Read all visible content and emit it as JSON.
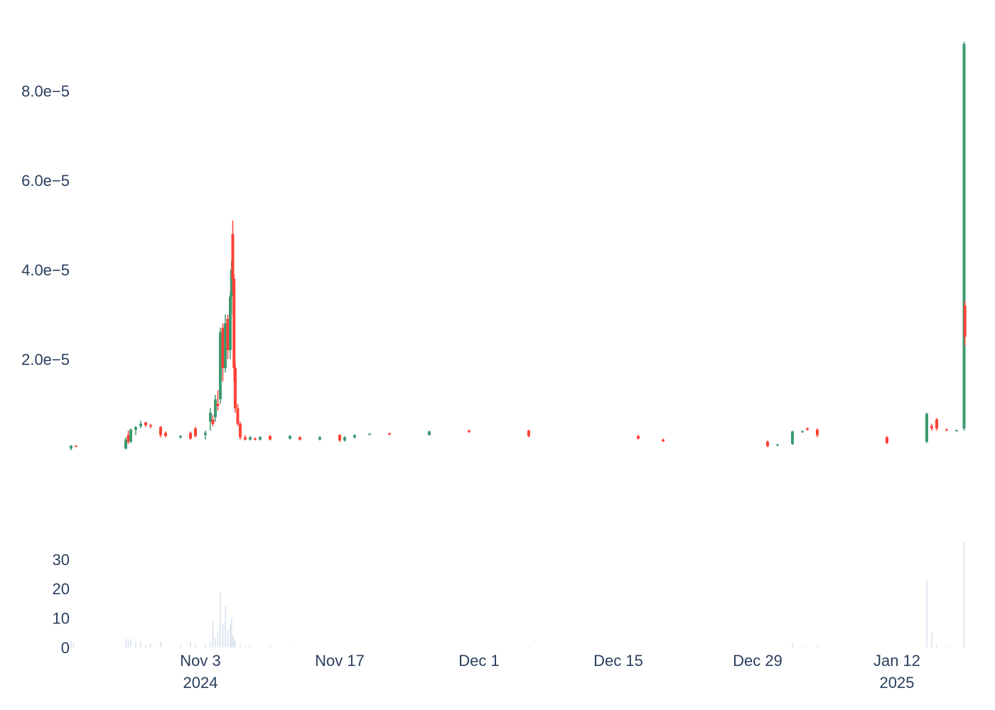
{
  "chart_data": [
    {
      "type": "candlestick",
      "y_ticks": [
        {
          "value": 2e-05,
          "label": "2.0e−5"
        },
        {
          "value": 4e-05,
          "label": "4.0e−5"
        },
        {
          "value": 6e-05,
          "label": "6.0e−5"
        },
        {
          "value": 8e-05,
          "label": "8.0e−5"
        }
      ],
      "ylim": [
        -4.5e-06,
        9.4e-05
      ],
      "xlim": [
        "2024-10-21",
        "2025-01-19"
      ],
      "x_ticks": [
        {
          "date": "2024-11-03",
          "label": "Nov 3",
          "sublabel": "2024"
        },
        {
          "date": "2024-11-17",
          "label": "Nov 17",
          "sublabel": ""
        },
        {
          "date": "2024-12-01",
          "label": "Dec 1",
          "sublabel": ""
        },
        {
          "date": "2024-12-15",
          "label": "Dec 15",
          "sublabel": ""
        },
        {
          "date": "2024-12-29",
          "label": "Dec 29",
          "sublabel": ""
        },
        {
          "date": "2025-01-12",
          "label": "Jan 12",
          "sublabel": "2025"
        }
      ],
      "colors": {
        "increasing": "#3d9970",
        "decreasing": "#ff4136"
      },
      "candles": [
        {
          "date": "2024-10-21",
          "open": 0.0,
          "high": 8e-07,
          "low": -4e-07,
          "close": 6e-07
        },
        {
          "date": "2024-10-21T12:00",
          "open": 6e-07,
          "high": 7e-07,
          "low": 4e-07,
          "close": 5e-07
        },
        {
          "date": "2024-10-26T12:00",
          "open": 0.0,
          "high": 2.5e-06,
          "low": -2e-07,
          "close": 2e-06
        },
        {
          "date": "2024-10-26T18:00",
          "open": 3e-06,
          "high": 4e-06,
          "low": 1e-06,
          "close": 1.5e-06
        },
        {
          "date": "2024-10-27",
          "open": 1.5e-06,
          "high": 4.5e-06,
          "low": 1.2e-06,
          "close": 4.2e-06
        },
        {
          "date": "2024-10-27T12:00",
          "open": 4.2e-06,
          "high": 5e-06,
          "low": 3e-06,
          "close": 4.8e-06
        },
        {
          "date": "2024-10-28",
          "open": 5e-06,
          "high": 6.2e-06,
          "low": 4.5e-06,
          "close": 5.5e-06
        },
        {
          "date": "2024-10-28T12:00",
          "open": 5.8e-06,
          "high": 6e-06,
          "low": 4.8e-06,
          "close": 5.2e-06
        },
        {
          "date": "2024-10-29",
          "open": 5.2e-06,
          "high": 5.5e-06,
          "low": 4.5e-06,
          "close": 5e-06
        },
        {
          "date": "2024-10-30",
          "open": 4.8e-06,
          "high": 5e-06,
          "low": 2.5e-06,
          "close": 3e-06
        },
        {
          "date": "2024-10-30T12:00",
          "open": 3.5e-06,
          "high": 3.8e-06,
          "low": 2.5e-06,
          "close": 2.8e-06
        },
        {
          "date": "2024-11-01",
          "open": 2.5e-06,
          "high": 3e-06,
          "low": 2.2e-06,
          "close": 2.8e-06
        },
        {
          "date": "2024-11-02",
          "open": 3.5e-06,
          "high": 3.8e-06,
          "low": 2e-06,
          "close": 2.2e-06
        },
        {
          "date": "2024-11-02T12:00",
          "open": 4.5e-06,
          "high": 4.8e-06,
          "low": 2.5e-06,
          "close": 2.8e-06
        },
        {
          "date": "2024-11-03T12:00",
          "open": 3e-06,
          "high": 4e-06,
          "low": 2e-06,
          "close": 3.5e-06
        },
        {
          "date": "2024-11-04",
          "open": 6e-06,
          "high": 9e-06,
          "low": 4e-06,
          "close": 8e-06
        },
        {
          "date": "2024-11-04T06:00",
          "open": 6.5e-06,
          "high": 7.5e-06,
          "low": 5e-06,
          "close": 5.5e-06
        },
        {
          "date": "2024-11-04T12:00",
          "open": 7e-06,
          "high": 1.2e-05,
          "low": 6e-06,
          "close": 1.1e-05
        },
        {
          "date": "2024-11-04T18:00",
          "open": 1e-05,
          "high": 1.3e-05,
          "low": 8.5e-06,
          "close": 9.5e-06
        },
        {
          "date": "2024-11-05",
          "open": 1.1e-05,
          "high": 2.7e-05,
          "low": 1e-05,
          "close": 2.6e-05
        },
        {
          "date": "2024-11-05T06:00",
          "open": 2.7e-05,
          "high": 2.8e-05,
          "low": 1.5e-05,
          "close": 1.8e-05
        },
        {
          "date": "2024-11-05T12:00",
          "open": 1.8e-05,
          "high": 3e-05,
          "low": 1.7e-05,
          "close": 2.8e-05
        },
        {
          "date": "2024-11-05T18:00",
          "open": 2.9e-05,
          "high": 3e-05,
          "low": 2e-05,
          "close": 2.2e-05
        },
        {
          "date": "2024-11-06",
          "open": 2.2e-05,
          "high": 3.5e-05,
          "low": 2e-05,
          "close": 3.4e-05
        },
        {
          "date": "2024-11-06T03:00",
          "open": 3.4e-05,
          "high": 4.2e-05,
          "low": 3e-05,
          "close": 4e-05
        },
        {
          "date": "2024-11-06T06:00",
          "open": 4.8e-05,
          "high": 5.1e-05,
          "low": 3.5e-05,
          "close": 3.8e-05
        },
        {
          "date": "2024-11-06T09:00",
          "open": 3.8e-05,
          "high": 3.9e-05,
          "low": 1.5e-05,
          "close": 1.8e-05
        },
        {
          "date": "2024-11-06T12:00",
          "open": 1.8e-05,
          "high": 1.9e-05,
          "low": 8e-06,
          "close": 9e-06
        },
        {
          "date": "2024-11-06T18:00",
          "open": 9e-06,
          "high": 1e-05,
          "low": 5e-06,
          "close": 5.5e-06
        },
        {
          "date": "2024-11-07",
          "open": 5.5e-06,
          "high": 6e-06,
          "low": 2e-06,
          "close": 2.5e-06
        },
        {
          "date": "2024-11-07T12:00",
          "open": 2.5e-06,
          "high": 3e-06,
          "low": 1.8e-06,
          "close": 2e-06
        },
        {
          "date": "2024-11-08",
          "open": 2e-06,
          "high": 2.8e-06,
          "low": 1.8e-06,
          "close": 2.5e-06
        },
        {
          "date": "2024-11-08T12:00",
          "open": 2.2e-06,
          "high": 2.5e-06,
          "low": 1.8e-06,
          "close": 2e-06
        },
        {
          "date": "2024-11-09",
          "open": 2e-06,
          "high": 2.8e-06,
          "low": 1.8e-06,
          "close": 2.5e-06
        },
        {
          "date": "2024-11-10",
          "open": 2.8e-06,
          "high": 3e-06,
          "low": 1.8e-06,
          "close": 2e-06
        },
        {
          "date": "2024-11-12",
          "open": 2.2e-06,
          "high": 3e-06,
          "low": 2e-06,
          "close": 2.8e-06
        },
        {
          "date": "2024-11-13",
          "open": 2.5e-06,
          "high": 2.7e-06,
          "low": 1.8e-06,
          "close": 2e-06
        },
        {
          "date": "2024-11-15",
          "open": 2e-06,
          "high": 2.8e-06,
          "low": 1.8e-06,
          "close": 2.5e-06
        },
        {
          "date": "2024-11-17",
          "open": 3e-06,
          "high": 3.2e-06,
          "low": 1.5e-06,
          "close": 1.8e-06
        },
        {
          "date": "2024-11-17T12:00",
          "open": 1.8e-06,
          "high": 2.8e-06,
          "low": 1.5e-06,
          "close": 2.5e-06
        },
        {
          "date": "2024-11-18T12:00",
          "open": 2.5e-06,
          "high": 3.2e-06,
          "low": 2.2e-06,
          "close": 3e-06
        },
        {
          "date": "2024-11-20",
          "open": 3.2e-06,
          "high": 3.4e-06,
          "low": 3e-06,
          "close": 3.3e-06
        },
        {
          "date": "2024-11-22",
          "open": 3.4e-06,
          "high": 3.5e-06,
          "low": 3e-06,
          "close": 3.1e-06
        },
        {
          "date": "2024-11-26",
          "open": 3e-06,
          "high": 4e-06,
          "low": 3e-06,
          "close": 3.8e-06
        },
        {
          "date": "2024-11-30",
          "open": 4e-06,
          "high": 4.2e-06,
          "low": 3.5e-06,
          "close": 3.7e-06
        },
        {
          "date": "2024-12-06",
          "open": 4e-06,
          "high": 4.2e-06,
          "low": 2.5e-06,
          "close": 2.8e-06
        },
        {
          "date": "2024-12-17",
          "open": 2.8e-06,
          "high": 3e-06,
          "low": 2e-06,
          "close": 2.2e-06
        },
        {
          "date": "2024-12-19T12:00",
          "open": 2e-06,
          "high": 2.2e-06,
          "low": 1.5e-06,
          "close": 1.6e-06
        },
        {
          "date": "2024-12-30",
          "open": 1.5e-06,
          "high": 1.8e-06,
          "low": 3e-07,
          "close": 5e-07
        },
        {
          "date": "2024-12-31",
          "open": 8e-07,
          "high": 1e-06,
          "low": 5e-07,
          "close": 9e-07
        },
        {
          "date": "2025-01-01T12:00",
          "open": 1e-06,
          "high": 4e-06,
          "low": 8e-07,
          "close": 3.8e-06
        },
        {
          "date": "2025-01-02T12:00",
          "open": 3.8e-06,
          "high": 4e-06,
          "low": 3.5e-06,
          "close": 3.9e-06
        },
        {
          "date": "2025-01-03",
          "open": 4.5e-06,
          "high": 4.7e-06,
          "low": 4e-06,
          "close": 4.2e-06
        },
        {
          "date": "2025-01-04",
          "open": 4.2e-06,
          "high": 4.5e-06,
          "low": 2.5e-06,
          "close": 3e-06
        },
        {
          "date": "2025-01-11",
          "open": 2.5e-06,
          "high": 2.8e-06,
          "low": 1e-06,
          "close": 1.2e-06
        },
        {
          "date": "2025-01-15",
          "open": 1.5e-06,
          "high": 8e-06,
          "low": 1.2e-06,
          "close": 7.8e-06
        },
        {
          "date": "2025-01-15T12:00",
          "open": 5e-06,
          "high": 5.5e-06,
          "low": 4e-06,
          "close": 4.5e-06
        },
        {
          "date": "2025-01-16",
          "open": 6.5e-06,
          "high": 6.8e-06,
          "low": 4e-06,
          "close": 4.5e-06
        },
        {
          "date": "2025-01-17",
          "open": 4.2e-06,
          "high": 4.5e-06,
          "low": 4e-06,
          "close": 4.1e-06
        },
        {
          "date": "2025-01-18",
          "open": 4e-06,
          "high": 4.2e-06,
          "low": 3.8e-06,
          "close": 4.1e-06
        },
        {
          "date": "2025-01-18T18:00",
          "open": 4.5e-06,
          "high": 9.1e-05,
          "low": 4e-06,
          "close": 9.05e-05
        },
        {
          "date": "2025-01-18T20:00",
          "open": 3.2e-05,
          "high": 3.3e-05,
          "low": 2.3e-05,
          "close": 2.5e-05
        }
      ]
    },
    {
      "type": "bar",
      "y_ticks": [
        {
          "value": 0,
          "label": "0"
        },
        {
          "value": 10,
          "label": "10"
        },
        {
          "value": 20,
          "label": "20"
        },
        {
          "value": 30,
          "label": "30"
        }
      ],
      "ylim": [
        0,
        36
      ],
      "color": "#dfe7f2",
      "bars": [
        {
          "date": "2024-10-21",
          "value": 2
        },
        {
          "date": "2024-10-21T06:00",
          "value": 1.5
        },
        {
          "date": "2024-10-26T12:00",
          "value": 3
        },
        {
          "date": "2024-10-26T18:00",
          "value": 2.5
        },
        {
          "date": "2024-10-27",
          "value": 3
        },
        {
          "date": "2024-10-27T12:00",
          "value": 1.5
        },
        {
          "date": "2024-10-28",
          "value": 2
        },
        {
          "date": "2024-10-28T12:00",
          "value": 1
        },
        {
          "date": "2024-10-29",
          "value": 1.5
        },
        {
          "date": "2024-10-30",
          "value": 2
        },
        {
          "date": "2024-11-01",
          "value": 1
        },
        {
          "date": "2024-11-02",
          "value": 2
        },
        {
          "date": "2024-11-02T12:00",
          "value": 1.5
        },
        {
          "date": "2024-11-03T12:00",
          "value": 1
        },
        {
          "date": "2024-11-04",
          "value": 2
        },
        {
          "date": "2024-11-04T06:00",
          "value": 9
        },
        {
          "date": "2024-11-04T12:00",
          "value": 3
        },
        {
          "date": "2024-11-04T18:00",
          "value": 5
        },
        {
          "date": "2024-11-05",
          "value": 19
        },
        {
          "date": "2024-11-05T06:00",
          "value": 8
        },
        {
          "date": "2024-11-05T12:00",
          "value": 14
        },
        {
          "date": "2024-11-05T18:00",
          "value": 6
        },
        {
          "date": "2024-11-06",
          "value": 8
        },
        {
          "date": "2024-11-06T03:00",
          "value": 10
        },
        {
          "date": "2024-11-06T06:00",
          "value": 4
        },
        {
          "date": "2024-11-06T09:00",
          "value": 3
        },
        {
          "date": "2024-11-06T12:00",
          "value": 2
        },
        {
          "date": "2024-11-07",
          "value": 1
        },
        {
          "date": "2024-11-07T12:00",
          "value": 0.5
        },
        {
          "date": "2024-11-08",
          "value": 0.5
        },
        {
          "date": "2024-11-10",
          "value": 0.5
        },
        {
          "date": "2024-11-12",
          "value": 0.3
        },
        {
          "date": "2024-12-06",
          "value": 0.3
        },
        {
          "date": "2025-01-01T12:00",
          "value": 1.5
        },
        {
          "date": "2025-01-02T12:00",
          "value": 0.5
        },
        {
          "date": "2025-01-04",
          "value": 0.5
        },
        {
          "date": "2025-01-15",
          "value": 23
        },
        {
          "date": "2025-01-15T12:00",
          "value": 5
        },
        {
          "date": "2025-01-16",
          "value": 1
        },
        {
          "date": "2025-01-17",
          "value": 0.5
        },
        {
          "date": "2025-01-18T18:00",
          "value": 36
        }
      ]
    }
  ]
}
